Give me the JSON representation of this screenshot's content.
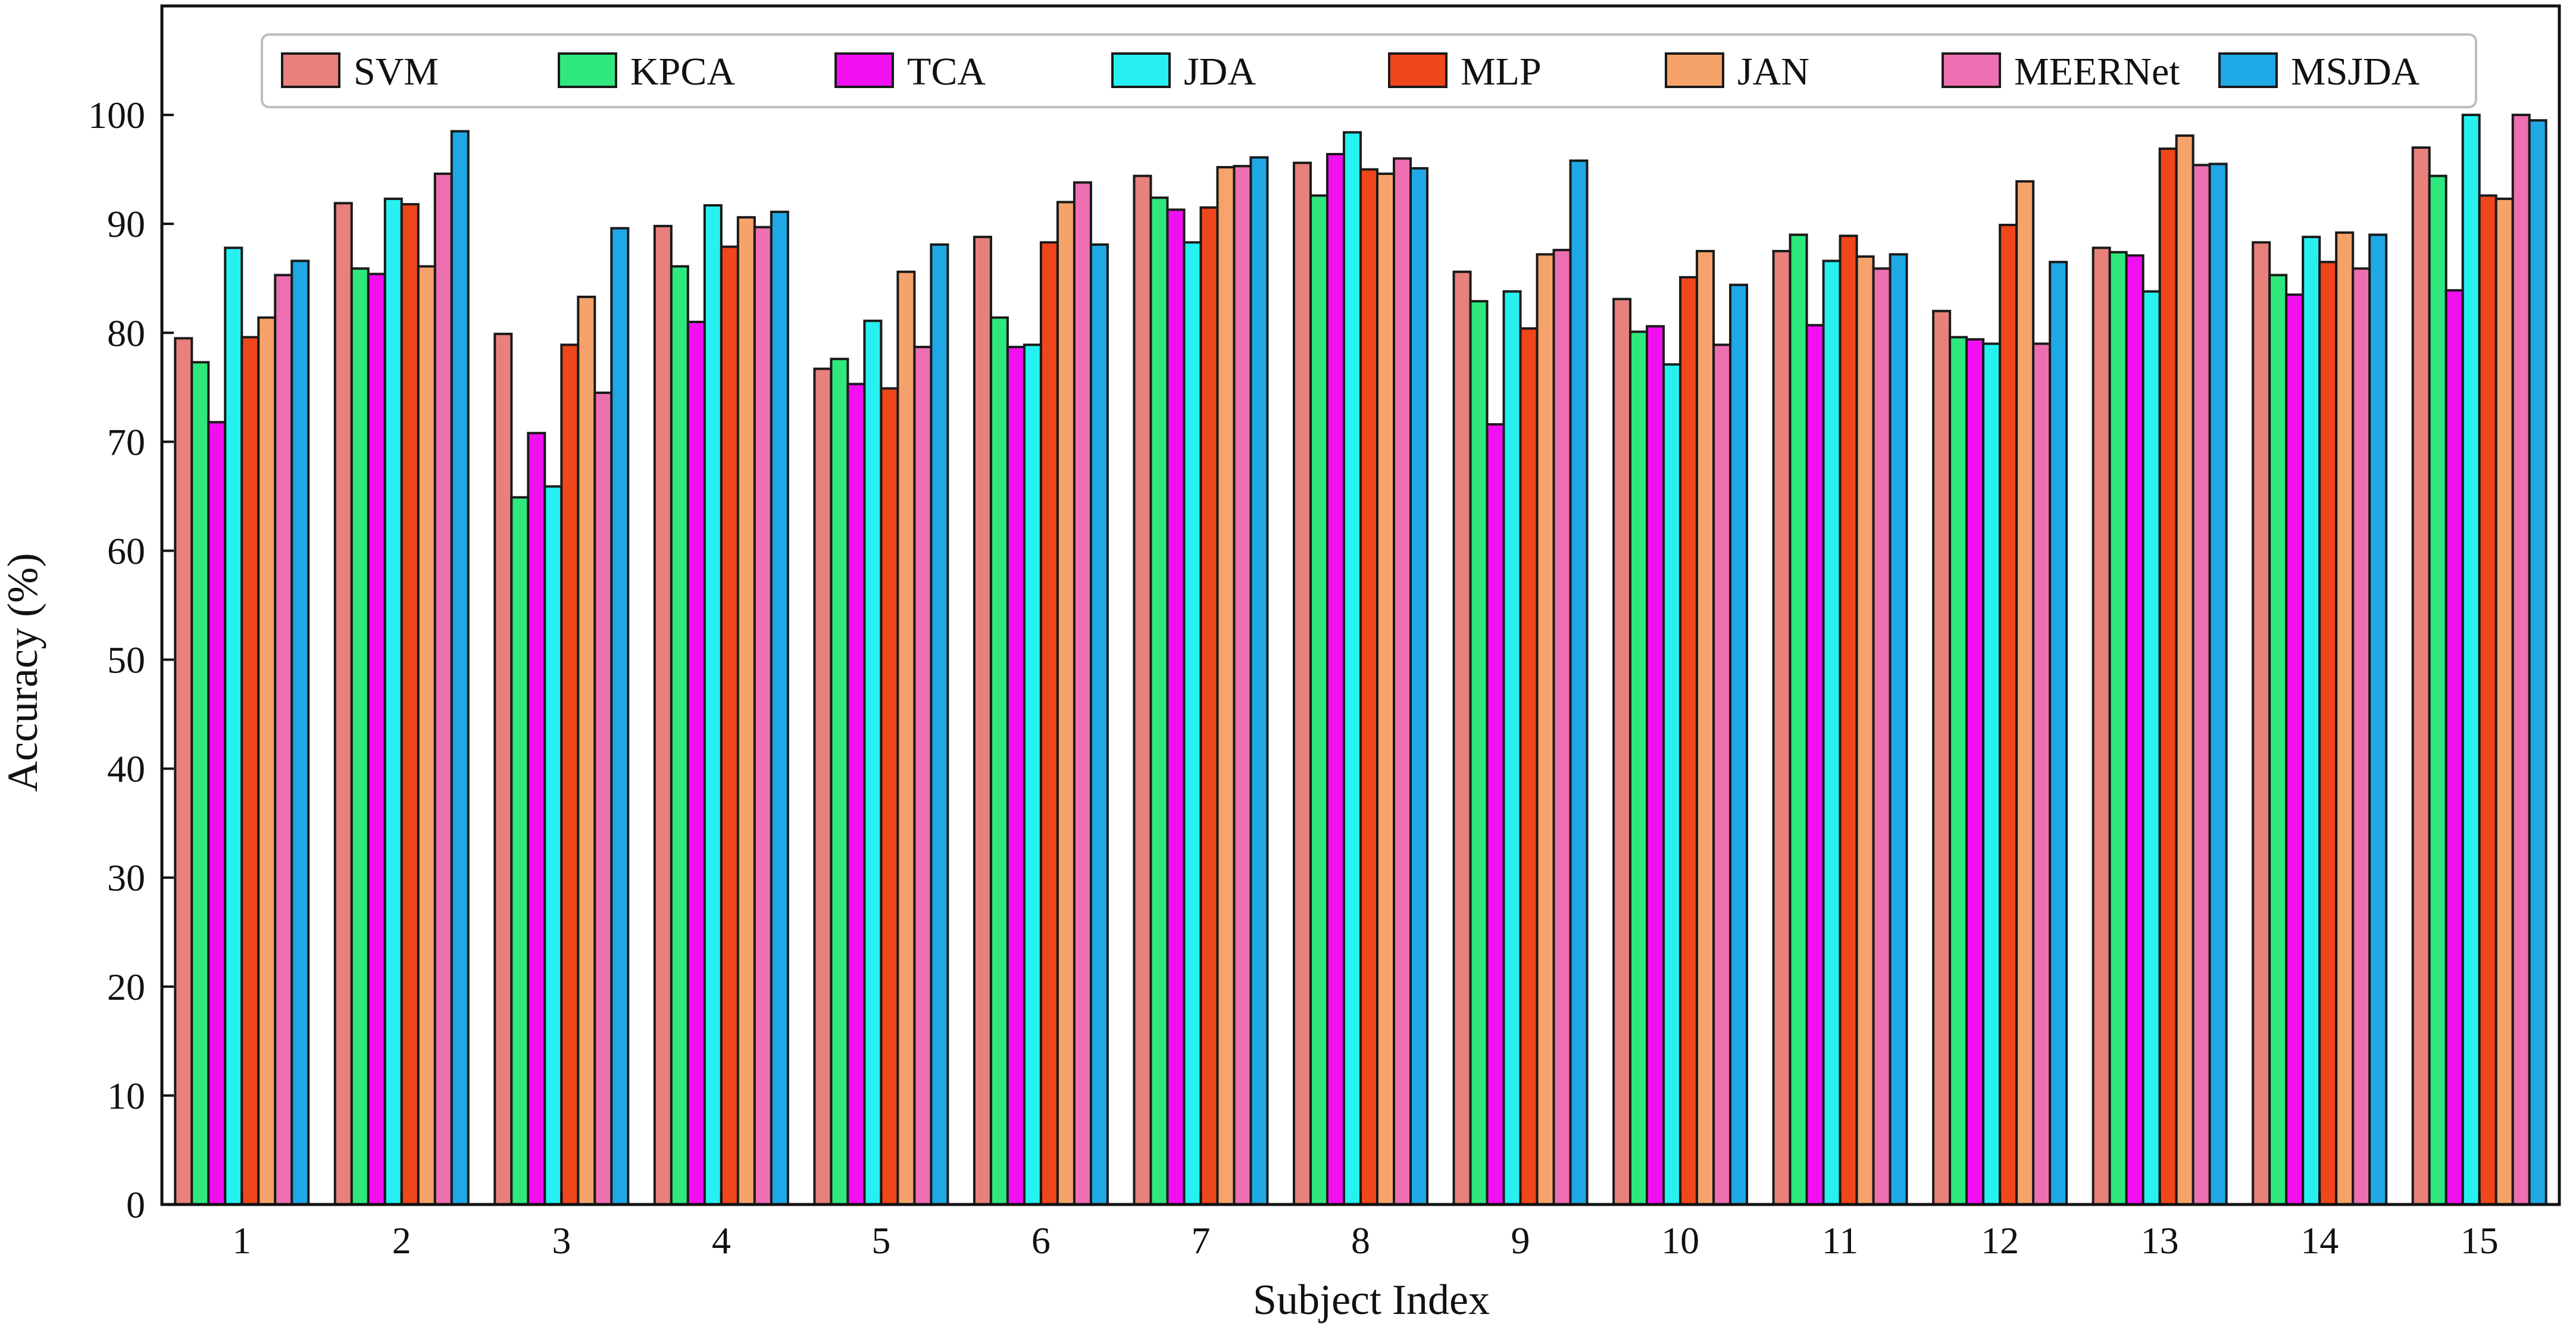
{
  "chart_data": {
    "type": "bar",
    "xlabel": "Subject Index",
    "ylabel": "Accuracy (%)",
    "ylim": [
      0,
      110
    ],
    "yticks": [
      0,
      10,
      20,
      30,
      40,
      50,
      60,
      70,
      80,
      90,
      100
    ],
    "categories": [
      "1",
      "2",
      "3",
      "4",
      "5",
      "6",
      "7",
      "8",
      "9",
      "10",
      "11",
      "12",
      "13",
      "14",
      "15"
    ],
    "legend_position": "top",
    "grid": false,
    "series": [
      {
        "name": "SVM",
        "color": "#e8817b",
        "values": [
          79.5,
          91.9,
          79.9,
          89.8,
          76.7,
          88.8,
          94.4,
          95.6,
          85.6,
          83.1,
          87.5,
          82.0,
          87.8,
          88.3,
          97.0
        ]
      },
      {
        "name": "KPCA",
        "color": "#2ee87d",
        "values": [
          77.3,
          85.9,
          64.9,
          86.1,
          77.6,
          81.4,
          92.4,
          92.6,
          82.9,
          80.1,
          89.0,
          79.6,
          87.4,
          85.3,
          94.4
        ]
      },
      {
        "name": "TCA",
        "color": "#f20ff2",
        "values": [
          71.8,
          85.4,
          70.8,
          81.0,
          75.3,
          78.7,
          91.3,
          96.4,
          71.6,
          80.6,
          80.7,
          79.4,
          87.1,
          83.5,
          83.9
        ]
      },
      {
        "name": "JDA",
        "color": "#27f0f0",
        "values": [
          87.8,
          92.3,
          65.9,
          91.7,
          81.1,
          78.9,
          88.3,
          98.4,
          83.8,
          77.1,
          86.6,
          79.0,
          83.8,
          88.8,
          100.0
        ]
      },
      {
        "name": "MLP",
        "color": "#f0461b",
        "values": [
          79.6,
          91.8,
          78.9,
          87.9,
          74.9,
          88.3,
          91.5,
          95.0,
          80.4,
          85.1,
          88.9,
          89.9,
          96.9,
          86.5,
          92.6
        ]
      },
      {
        "name": "JAN",
        "color": "#f5a36a",
        "values": [
          81.4,
          86.1,
          83.3,
          90.6,
          85.6,
          92.0,
          95.2,
          94.6,
          87.2,
          87.5,
          87.0,
          93.9,
          98.1,
          89.2,
          92.3
        ]
      },
      {
        "name": "MEERNet",
        "color": "#ee6fb1",
        "values": [
          85.3,
          94.6,
          74.5,
          89.7,
          78.7,
          93.8,
          95.3,
          96.0,
          87.6,
          78.9,
          85.9,
          79.0,
          95.4,
          85.9,
          100.0
        ]
      },
      {
        "name": "MSJDA",
        "color": "#1ea8e6",
        "values": [
          86.6,
          98.5,
          89.6,
          91.1,
          88.1,
          88.1,
          96.1,
          95.1,
          95.8,
          84.4,
          87.2,
          86.5,
          95.5,
          89.0,
          99.5
        ]
      }
    ]
  }
}
